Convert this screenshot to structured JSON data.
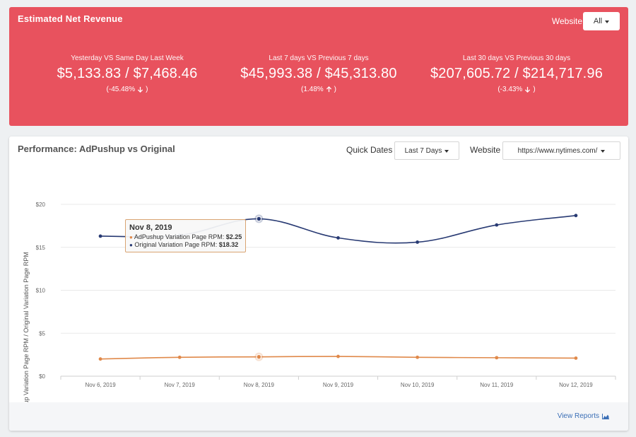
{
  "revenue": {
    "title": "Estimated Net Revenue",
    "filter_label": "Website",
    "filter_value": "All",
    "metrics": [
      {
        "label": "Yesterday VS Same Day Last Week",
        "value": "$5,133.83 / $7,468.46",
        "change": "(-45.48%",
        "direction": "down"
      },
      {
        "label": "Last 7 days VS Previous 7 days",
        "value": "$45,993.38 / $45,313.80",
        "change": "(1.48%",
        "direction": "up"
      },
      {
        "label": "Last 30 days VS Previous 30 days",
        "value": "$207,605.72 / $214,717.96",
        "change": "(-3.43%",
        "direction": "down"
      }
    ]
  },
  "performance": {
    "title": "Performance: AdPushup vs Original",
    "quick_dates_label": "Quick Dates",
    "quick_dates_value": "Last 7 Days",
    "website_label": "Website",
    "website_value": "https://www.nytimes.com/",
    "view_reports": "View Reports",
    "tooltip": {
      "date": "Nov 8, 2019",
      "rows": [
        {
          "label": "AdPushup Variation Page RPM: ",
          "value": "$2.25",
          "color": "#e0894a"
        },
        {
          "label": "Original Variation Page RPM: ",
          "value": "$18.32",
          "color": "#283a73"
        }
      ]
    }
  },
  "chart_data": {
    "type": "line",
    "ylabel": "AdPushup Variation Page RPM / Original Variation Page RPM",
    "ylim": [
      0,
      20
    ],
    "yticks": [
      "$0",
      "$5",
      "$10",
      "$15",
      "$20"
    ],
    "categories": [
      "Nov 6, 2019",
      "Nov 7, 2019",
      "Nov 8, 2019",
      "Nov 9, 2019",
      "Nov 10, 2019",
      "Nov 11, 2019",
      "Nov 12, 2019"
    ],
    "highlight_index": 2,
    "grid": true,
    "series": [
      {
        "name": "Original Variation Page RPM",
        "color": "#283a73",
        "values": [
          16.3,
          16.4,
          18.32,
          16.1,
          15.6,
          17.6,
          18.7
        ]
      },
      {
        "name": "AdPushup Variation Page RPM",
        "color": "#e0894a",
        "values": [
          2.0,
          2.2,
          2.25,
          2.3,
          2.2,
          2.15,
          2.1
        ]
      }
    ]
  }
}
